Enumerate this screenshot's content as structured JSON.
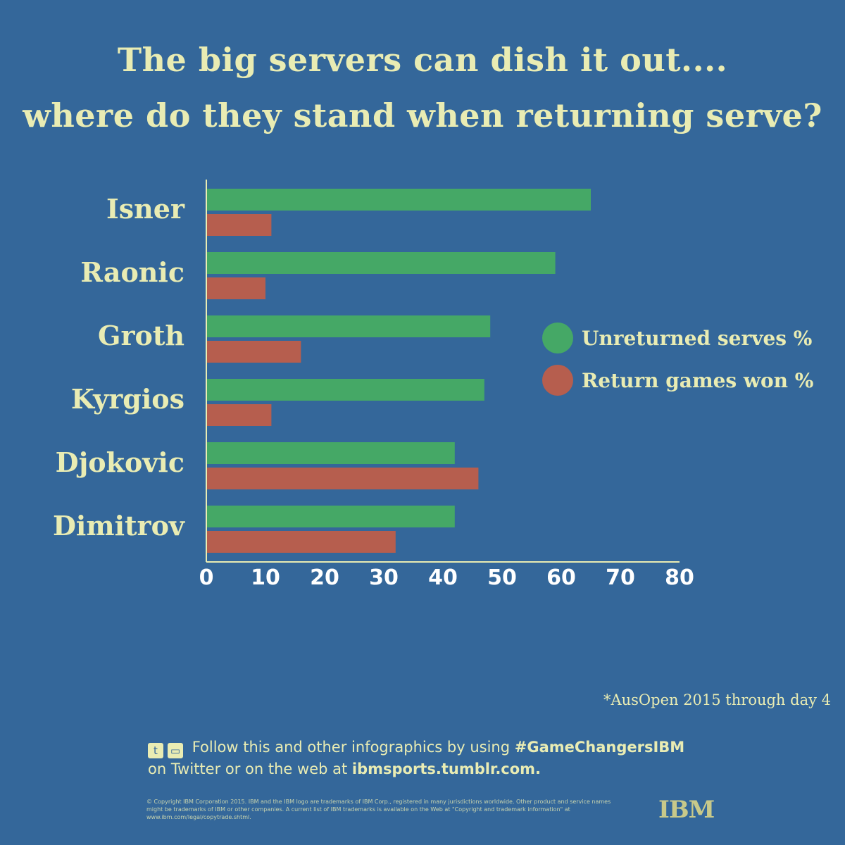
{
  "title_line1": "The big servers can dish it out....",
  "title_line2": "where do they stand when returning serve?",
  "chart_data": {
    "type": "bar",
    "orientation": "horizontal",
    "categories": [
      "Isner",
      "Raonic",
      "Groth",
      "Kyrgios",
      "Djokovic",
      "Dimitrov"
    ],
    "series": [
      {
        "name": "Unreturned serves %",
        "color": "#45a866",
        "values": [
          65,
          59,
          48,
          47,
          42,
          42
        ]
      },
      {
        "name": "Return games won %",
        "color": "#b65e4e",
        "values": [
          11,
          10,
          16,
          11,
          46,
          32
        ]
      }
    ],
    "xlim": [
      0,
      80
    ],
    "xticks": [
      "0",
      "10",
      "20",
      "30",
      "40",
      "50",
      "60",
      "70",
      "80"
    ],
    "grid": false,
    "legend": "right"
  },
  "note": "*AusOpen 2015 through day 4",
  "footer": {
    "twitter_icon": "twitter-icon",
    "web_icon": "computer-icon",
    "follow_text": "Follow this and other infographics by using ",
    "hashtag": "#GameChangersIBM",
    "line2_text": "on Twitter or on the web at ",
    "url": "ibmsports.tumblr.com.",
    "legal": "© Copyright IBM Corporation 2015. IBM and the IBM logo are trademarks of IBM Corp., registered in many jurisdictions worldwide. Other product and service names might be trademarks of IBM or other companies. A current list of IBM trademarks is available on the Web at \"Copyright and trademark information\" at www.ibm.com/legal/copytrade.shtml.",
    "logo": "IBM"
  }
}
